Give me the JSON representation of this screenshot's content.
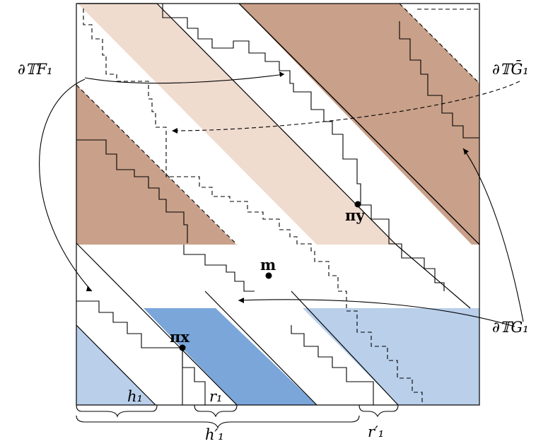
{
  "colors": {
    "dark_brown": "#c9a089",
    "light_peach": "#f0dbcf",
    "dark_blue": "#7aa6da",
    "light_blue": "#b9cfea",
    "ink": "#000000"
  },
  "labels": {
    "partial_F1": "∂𝕋F₁",
    "partial_Gbar1": "∂𝕋Ḡ₁",
    "partial_G1": "∂𝕋G₁",
    "pi_y": "πy",
    "pi_x": "πx",
    "m": "m",
    "h1": "h₁",
    "r1": "r₁",
    "h1_prime": "h′₁",
    "r1_prime": "r′₁"
  }
}
